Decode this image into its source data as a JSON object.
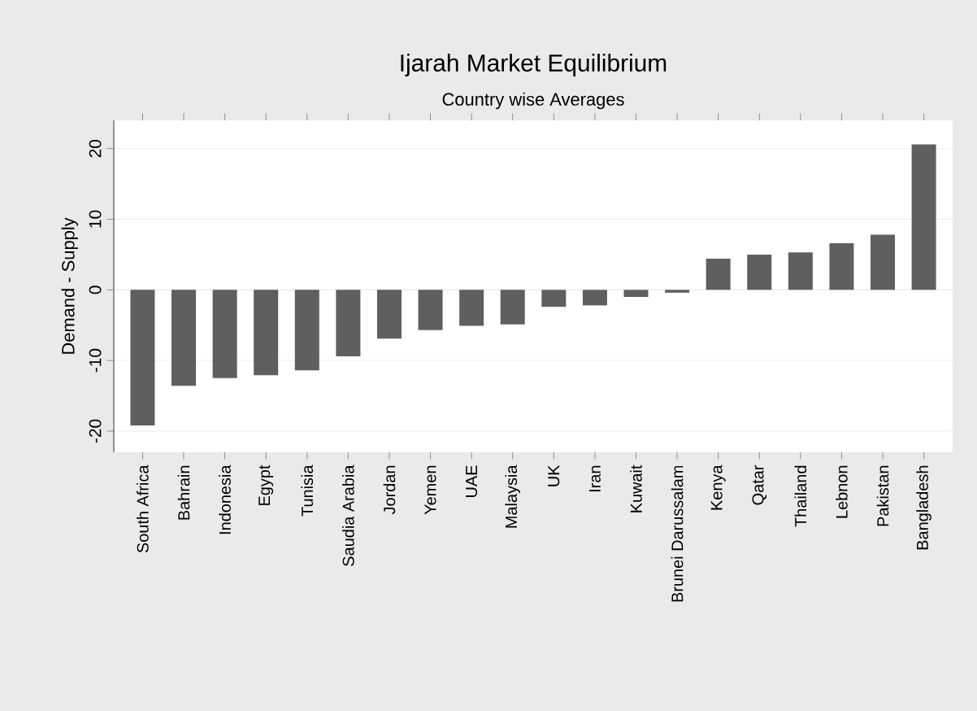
{
  "chart_data": {
    "type": "bar",
    "title": "Ijarah Market Equilibrium",
    "subtitle": "Country wise Averages",
    "ylabel": "Demand - Supply",
    "categories": [
      "South Africa",
      "Bahrain",
      "Indonesia",
      "Egypt",
      "Tunisia",
      "Saudia Arabia",
      "Jordan",
      "Yemen",
      "UAE",
      "Malaysia",
      "UK",
      "Iran",
      "Kuwait",
      "Brunei Darussalam",
      "Kenya",
      "Qatar",
      "Thailand",
      "Lebnon",
      "Pakistan",
      "Bangladesh"
    ],
    "values": [
      -19.2,
      -13.6,
      -12.5,
      -12.1,
      -11.4,
      -9.4,
      -6.9,
      -5.7,
      -5.1,
      -4.9,
      -2.4,
      -2.2,
      -1.0,
      -0.4,
      4.4,
      5.0,
      5.3,
      6.6,
      7.8,
      20.6
    ],
    "color": "#5f5f5f",
    "ylim": [
      -23,
      24
    ],
    "yticks": [
      -20,
      -10,
      0,
      10,
      20
    ],
    "grid": "y"
  }
}
